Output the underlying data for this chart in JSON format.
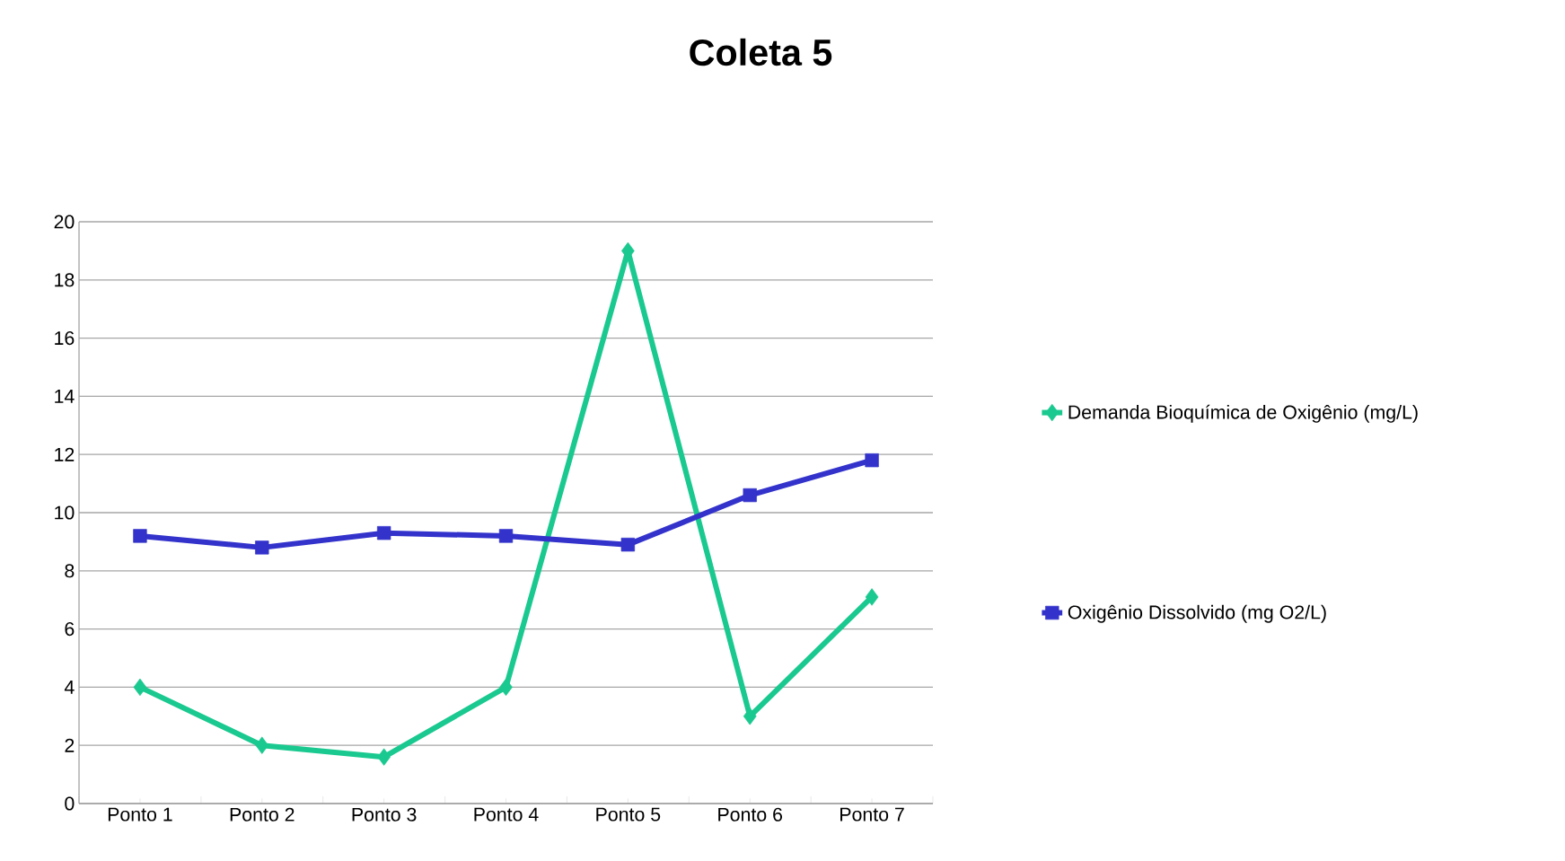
{
  "chart_data": {
    "type": "line",
    "title": "Coleta 5",
    "categories": [
      "Ponto 1",
      "Ponto 2",
      "Ponto 3",
      "Ponto 4",
      "Ponto 5",
      "Ponto 6",
      "Ponto 7"
    ],
    "series": [
      {
        "name": "Demanda Bioquímica de Oxigênio (mg/L)",
        "color": "#1ac98f",
        "marker": "diamond",
        "values": [
          4,
          2,
          1.6,
          4,
          19,
          3,
          7.1
        ]
      },
      {
        "name": "Oxigênio Dissolvido (mg O2/L)",
        "color": "#3333cc",
        "marker": "square",
        "values": [
          9.2,
          8.8,
          9.3,
          9.2,
          8.9,
          10.6,
          11.8
        ]
      }
    ],
    "ylim": [
      0,
      20
    ],
    "yticks": [
      0,
      2,
      4,
      6,
      8,
      10,
      12,
      14,
      16,
      18,
      20
    ],
    "grid": "y",
    "legend": "right",
    "line_style": "solid"
  }
}
